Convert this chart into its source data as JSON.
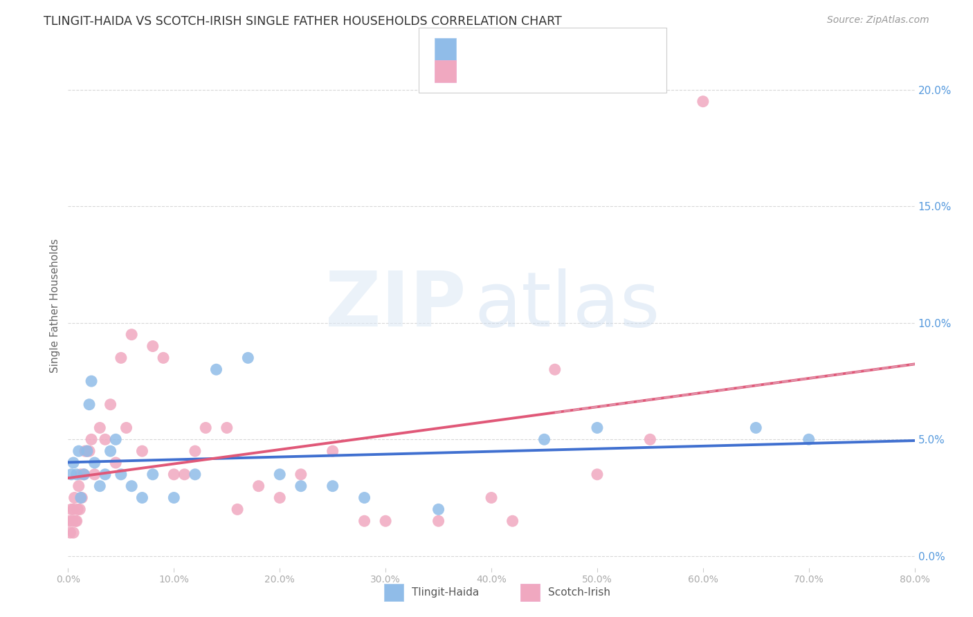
{
  "title": "TLINGIT-HAIDA VS SCOTCH-IRISH SINGLE FATHER HOUSEHOLDS CORRELATION CHART",
  "source": "Source: ZipAtlas.com",
  "ylabel": "Single Father Households",
  "xlim": [
    0,
    80
  ],
  "ylim": [
    -0.5,
    22
  ],
  "yticks": [
    0,
    5,
    10,
    15,
    20
  ],
  "ytick_labels": [
    "0.0%",
    "5.0%",
    "10.0%",
    "15.0%",
    "20.0%"
  ],
  "xticks": [
    0,
    10,
    20,
    30,
    40,
    50,
    60,
    70,
    80
  ],
  "xtick_labels": [
    "0.0%",
    "10.0%",
    "20.0%",
    "30.0%",
    "40.0%",
    "50.0%",
    "60.0%",
    "70.0%",
    "80.0%"
  ],
  "background_color": "#ffffff",
  "tlingit_color": "#90bce8",
  "scotch_color": "#f0a8c0",
  "tlingit_line_color": "#4070d0",
  "scotch_line_color": "#e05878",
  "scotch_dash_color": "#e090a8",
  "grid_color": "#d8d8d8",
  "title_color": "#333333",
  "source_color": "#999999",
  "legend_text_color": "#4488cc",
  "tlingit_x": [
    0.3,
    0.5,
    0.8,
    1.0,
    1.2,
    1.5,
    1.8,
    2.0,
    2.2,
    2.5,
    3.0,
    3.5,
    4.0,
    4.5,
    5.0,
    6.0,
    7.0,
    8.0,
    10.0,
    12.0,
    14.0,
    17.0,
    20.0,
    22.0,
    25.0,
    28.0,
    35.0,
    45.0,
    50.0,
    65.0,
    70.0
  ],
  "tlingit_y": [
    3.5,
    4.0,
    3.5,
    4.5,
    2.5,
    3.5,
    4.5,
    6.5,
    7.5,
    4.0,
    3.0,
    3.5,
    4.5,
    5.0,
    3.5,
    3.0,
    2.5,
    3.5,
    2.5,
    3.5,
    8.0,
    8.5,
    3.5,
    3.0,
    3.0,
    2.5,
    2.0,
    5.0,
    5.5,
    5.5,
    5.0
  ],
  "scotch_x": [
    0.1,
    0.2,
    0.3,
    0.4,
    0.5,
    0.5,
    0.6,
    0.7,
    0.8,
    0.9,
    1.0,
    1.1,
    1.2,
    1.3,
    1.5,
    1.6,
    1.8,
    2.0,
    2.2,
    2.5,
    3.0,
    3.5,
    4.0,
    4.5,
    5.0,
    5.5,
    6.0,
    7.0,
    8.0,
    9.0,
    10.0,
    11.0,
    12.0,
    13.0,
    15.0,
    16.0,
    18.0,
    20.0,
    22.0,
    25.0,
    28.0,
    30.0,
    35.0,
    40.0,
    42.0,
    46.0,
    50.0,
    55.0,
    60.0
  ],
  "scotch_y": [
    1.5,
    1.0,
    2.0,
    1.5,
    2.0,
    1.0,
    2.5,
    1.5,
    1.5,
    2.0,
    3.0,
    2.0,
    3.5,
    2.5,
    3.5,
    4.5,
    4.5,
    4.5,
    5.0,
    3.5,
    5.5,
    5.0,
    6.5,
    4.0,
    8.5,
    5.5,
    9.5,
    4.5,
    9.0,
    8.5,
    3.5,
    3.5,
    4.5,
    5.5,
    5.5,
    2.0,
    3.0,
    2.5,
    3.5,
    4.5,
    1.5,
    1.5,
    1.5,
    2.5,
    1.5,
    8.0,
    3.5,
    5.0,
    19.5
  ]
}
